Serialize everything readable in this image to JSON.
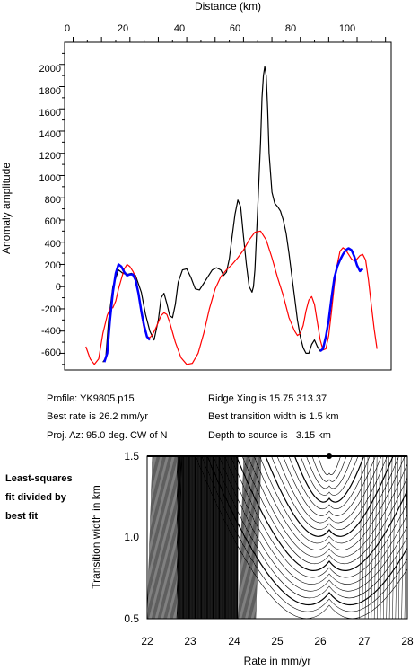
{
  "profile": {
    "x_axis_title": "Distance (km)",
    "y_axis_title": "Anomaly amplitude",
    "x_ticks": [
      "0",
      "20",
      "40",
      "60",
      "80",
      "100"
    ],
    "y_ticks": [
      "2000",
      "1800",
      "1600",
      "1400",
      "1200",
      "1000",
      "800",
      "600",
      "400",
      "200",
      "0",
      "-200",
      "-400",
      "-600"
    ]
  },
  "info": {
    "profile": "Profile: YK9805.p15",
    "best_rate": "Best rate is 26.2 mm/yr",
    "proj_az": "Proj. Az: 95.0 deg. CW of N",
    "ridge_xing": "Ridge Xing is 15.75 313.37",
    "best_width": "Best transition width is 1.5 km",
    "depth": "Depth to source is   3.15 km"
  },
  "contour": {
    "side_label": [
      "Least-squares",
      "fit divided by",
      "best fit"
    ],
    "x_axis_title": "Rate in mm/yr",
    "y_axis_title": "Transition width in km",
    "x_ticks": [
      "22",
      "23",
      "24",
      "25",
      "26",
      "27",
      "28"
    ],
    "y_ticks": [
      "1.5",
      "1.0",
      "0.5"
    ]
  },
  "chart_data": [
    {
      "type": "line",
      "title": "",
      "xlabel": "Distance (km)",
      "ylabel": "Anomaly amplitude",
      "xlim": [
        -3,
        112
      ],
      "ylim": [
        -750,
        2200
      ],
      "grid": false,
      "series": [
        {
          "color": "#000000",
          "x": [
            10.5,
            11.5,
            12.5,
            14,
            16,
            17.5,
            19,
            20.5,
            22,
            24,
            25.5,
            27,
            28.5,
            30,
            31,
            32,
            33,
            34,
            35,
            36,
            37,
            38.5,
            40,
            41.5,
            43,
            44.5,
            46,
            47.5,
            49,
            50.5,
            52,
            53,
            54,
            55,
            56,
            57,
            58,
            59,
            60,
            61,
            62,
            63,
            63.5,
            64,
            65,
            66,
            66.5,
            67,
            67.5,
            68,
            68.5,
            69,
            70,
            71,
            72,
            73,
            74,
            75,
            76,
            77,
            78,
            79,
            80,
            81,
            82,
            83,
            84,
            85,
            86,
            87,
            88,
            89,
            90,
            91,
            92,
            93,
            94,
            95,
            96,
            97,
            98,
            99,
            100,
            101,
            102
          ],
          "y": [
            -680,
            -640,
            -300,
            0,
            150,
            120,
            110,
            120,
            100,
            -50,
            -250,
            -400,
            -480,
            -300,
            -100,
            -60,
            -150,
            -260,
            -280,
            -160,
            40,
            150,
            160,
            80,
            -20,
            -30,
            30,
            90,
            150,
            170,
            150,
            100,
            130,
            250,
            450,
            650,
            780,
            720,
            450,
            200,
            0,
            -50,
            0,
            150,
            700,
            1300,
            1700,
            1900,
            1980,
            1900,
            1600,
            1200,
            850,
            750,
            720,
            680,
            600,
            480,
            300,
            100,
            -100,
            -300,
            -450,
            -550,
            -600,
            -600,
            -520,
            -480,
            -540,
            -580,
            -560,
            -450,
            -300,
            -100,
            80,
            180,
            240,
            290,
            330,
            345,
            330,
            270,
            190,
            140,
            160
          ]
        },
        {
          "color": "#ff0000",
          "x": [
            4.5,
            6,
            7.5,
            9,
            10.5,
            12,
            13,
            14,
            15,
            16,
            17,
            18,
            19,
            20,
            21,
            22,
            23,
            24,
            25,
            26,
            27,
            28,
            29,
            30,
            31,
            32,
            33,
            34,
            36,
            38,
            40,
            42,
            44,
            46,
            48,
            50,
            52,
            54,
            56,
            58,
            60,
            62,
            64,
            66,
            68,
            70,
            72,
            74,
            76,
            78,
            79,
            80,
            81,
            82,
            83,
            84,
            85,
            86,
            87,
            88,
            89,
            90,
            91,
            92,
            93,
            94,
            95,
            96,
            97,
            98,
            99,
            100,
            101,
            102,
            103,
            104,
            105,
            106,
            107
          ],
          "y": [
            -540,
            -650,
            -700,
            -650,
            -420,
            -260,
            -200,
            -190,
            -130,
            -20,
            70,
            160,
            200,
            180,
            140,
            90,
            -50,
            -250,
            -380,
            -450,
            -460,
            -430,
            -380,
            -320,
            -260,
            -235,
            -250,
            -320,
            -500,
            -640,
            -700,
            -690,
            -600,
            -420,
            -200,
            -20,
            90,
            150,
            200,
            260,
            330,
            420,
            490,
            500,
            420,
            260,
            80,
            -80,
            -280,
            -400,
            -440,
            -420,
            -350,
            -220,
            -120,
            -90,
            -160,
            -320,
            -480,
            -570,
            -560,
            -440,
            -220,
            20,
            200,
            320,
            350,
            330,
            290,
            250,
            230,
            250,
            280,
            290,
            240,
            60,
            -160,
            -380,
            -560
          ]
        },
        {
          "color": "#0000ff",
          "x": [
            11,
            12,
            13,
            14,
            15,
            16,
            17,
            18,
            19,
            20,
            21,
            22,
            23,
            24,
            25,
            26,
            27
          ],
          "y": [
            -680,
            -600,
            -300,
            -50,
            120,
            200,
            180,
            130,
            100,
            110,
            110,
            60,
            -60,
            -220,
            -350,
            -450,
            -480
          ]
        },
        {
          "color": "#0000ff",
          "x": [
            87,
            88,
            89,
            90,
            91,
            92,
            93,
            94,
            95,
            96,
            97,
            98,
            99,
            100,
            101,
            102
          ],
          "y": [
            -580,
            -560,
            -450,
            -300,
            -100,
            80,
            180,
            240,
            290,
            330,
            345,
            330,
            270,
            190,
            140,
            160
          ]
        }
      ]
    },
    {
      "type": "contour",
      "title": "",
      "xlabel": "Rate in mm/yr",
      "ylabel": "Transition width in km",
      "xlim": [
        22,
        28
      ],
      "ylim": [
        0.5,
        1.5
      ],
      "best_fit": {
        "x": 26.2,
        "y": 1.5
      }
    }
  ]
}
